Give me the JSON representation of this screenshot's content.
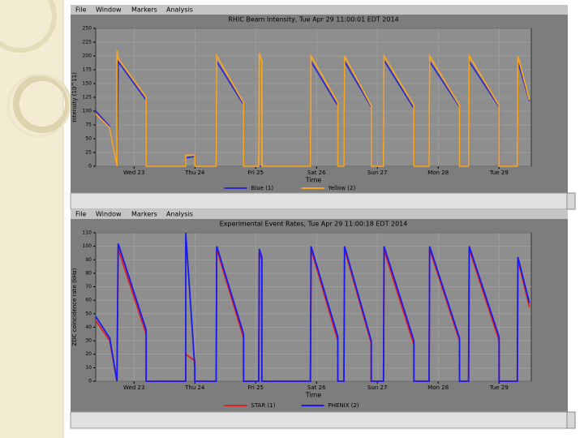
{
  "menu_bars": [
    [
      "File",
      "Window",
      "Markers",
      "Analysis"
    ],
    [
      "File",
      "Window",
      "Markers",
      "Analysis"
    ]
  ],
  "chart_data": [
    {
      "type": "line",
      "title": "RHIC Beam Intensity, Tue Apr 29 11:00:01 EDT 2014",
      "xlabel": "Time",
      "ylabel": "Intensity (10^11)",
      "xlim": [
        22.37,
        29.53
      ],
      "ylim": [
        0,
        250
      ],
      "xticks": [
        {
          "value": 23,
          "label": "Wed 23"
        },
        {
          "value": 24,
          "label": "Thu 24"
        },
        {
          "value": 25,
          "label": "Fri 25"
        },
        {
          "value": 26,
          "label": "Sat 26"
        },
        {
          "value": 27,
          "label": "Sun 27"
        },
        {
          "value": 28,
          "label": "Mon 28"
        },
        {
          "value": 29,
          "label": "Tue 29"
        }
      ],
      "yticks": [
        0,
        25,
        50,
        75,
        100,
        125,
        150,
        175,
        200,
        225,
        250
      ],
      "grid": true,
      "x": [
        22.37,
        22.6,
        22.72,
        22.72,
        22.74,
        23.2,
        23.2,
        23.85,
        23.85,
        24.0,
        24.0,
        24.35,
        24.36,
        24.8,
        24.8,
        25.05,
        25.06,
        25.1,
        25.1,
        25.9,
        25.91,
        26.35,
        26.35,
        26.45,
        26.46,
        26.9,
        26.9,
        27.1,
        27.11,
        27.6,
        27.6,
        27.85,
        27.86,
        28.35,
        28.35,
        28.5,
        28.51,
        29.0,
        29.0,
        29.3,
        29.31,
        29.5
      ],
      "series": [
        {
          "name": "Blue (1)",
          "color": "#2a2ad0",
          "values": [
            100,
            72,
            0,
            0,
            190,
            120,
            0,
            0,
            15,
            18,
            0,
            0,
            190,
            112,
            0,
            0,
            0,
            0,
            0,
            0,
            190,
            110,
            0,
            0,
            190,
            108,
            0,
            0,
            192,
            105,
            0,
            0,
            190,
            108,
            0,
            0,
            190,
            108,
            0,
            0,
            190,
            118
          ]
        },
        {
          "name": "Yellow (2)",
          "color": "#f5a623",
          "values": [
            95,
            70,
            0,
            210,
            195,
            125,
            0,
            0,
            20,
            20,
            0,
            0,
            200,
            115,
            0,
            0,
            205,
            190,
            0,
            0,
            200,
            115,
            0,
            0,
            200,
            110,
            0,
            0,
            200,
            110,
            0,
            0,
            200,
            110,
            0,
            0,
            200,
            110,
            0,
            0,
            200,
            120
          ]
        }
      ]
    },
    {
      "type": "line",
      "title": "Experimental Event Rates, Tue Apr 29 11:00:18 EDT 2014",
      "xlabel": "Time",
      "ylabel": "ZDC coincidence rate (kHz)",
      "xlim": [
        22.37,
        29.53
      ],
      "ylim": [
        0,
        110
      ],
      "xticks": [
        {
          "value": 23,
          "label": "Wed 23"
        },
        {
          "value": 24,
          "label": "Thu 24"
        },
        {
          "value": 25,
          "label": "Fri 25"
        },
        {
          "value": 26,
          "label": "Sat 26"
        },
        {
          "value": 27,
          "label": "Sun 27"
        },
        {
          "value": 28,
          "label": "Mon 28"
        },
        {
          "value": 29,
          "label": "Tue 29"
        }
      ],
      "yticks": [
        0,
        10,
        20,
        30,
        40,
        50,
        60,
        70,
        80,
        90,
        100,
        110
      ],
      "grid": true,
      "x": [
        22.37,
        22.6,
        22.72,
        22.72,
        22.74,
        23.2,
        23.2,
        23.85,
        23.85,
        24.0,
        24.0,
        24.35,
        24.36,
        24.8,
        24.8,
        25.05,
        25.06,
        25.1,
        25.1,
        25.9,
        25.91,
        26.35,
        26.35,
        26.45,
        26.46,
        26.9,
        26.9,
        27.1,
        27.11,
        27.6,
        27.6,
        27.85,
        27.86,
        28.35,
        28.35,
        28.5,
        28.51,
        29.0,
        29.0,
        29.3,
        29.31,
        29.5
      ],
      "series": [
        {
          "name": "STAR (1)",
          "color": "#e02020",
          "values": [
            45,
            30,
            0,
            0,
            98,
            35,
            0,
            0,
            20,
            15,
            0,
            0,
            98,
            32,
            0,
            0,
            95,
            90,
            0,
            0,
            98,
            30,
            0,
            0,
            98,
            28,
            0,
            0,
            97,
            27,
            0,
            0,
            98,
            30,
            0,
            0,
            98,
            30,
            0,
            0,
            90,
            55
          ]
        },
        {
          "name": "PHENIX (2)",
          "color": "#1a1aee",
          "values": [
            48,
            32,
            0,
            0,
            102,
            38,
            0,
            0,
            110,
            10,
            0,
            0,
            100,
            35,
            0,
            0,
            98,
            92,
            0,
            0,
            100,
            33,
            0,
            0,
            100,
            30,
            0,
            0,
            100,
            30,
            0,
            0,
            100,
            32,
            0,
            0,
            100,
            33,
            0,
            0,
            92,
            58
          ]
        }
      ]
    }
  ]
}
